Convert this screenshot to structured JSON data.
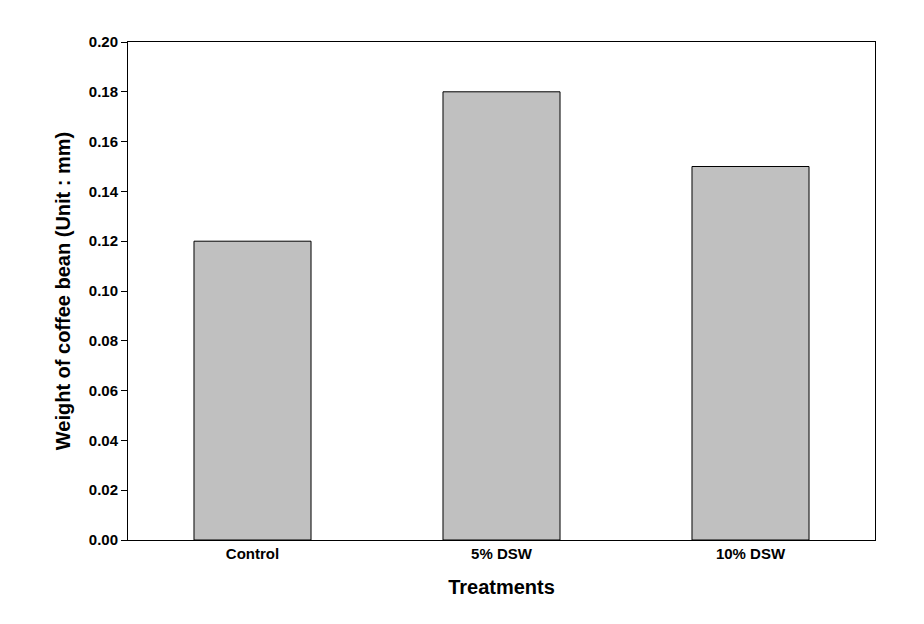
{
  "chart_data": {
    "type": "bar",
    "x_label": "Treatments",
    "y_label": "Weight of coffee bean (Unit : mm)",
    "categories": [
      "Control",
      "5% DSW",
      "10% DSW"
    ],
    "values": [
      0.12,
      0.18,
      0.15
    ],
    "color": "#c0c0c0",
    "ylim": [
      0,
      0.2
    ],
    "yticks": [
      {
        "value": 0,
        "label": "0.00"
      },
      {
        "value": 0.02,
        "label": "0.02"
      },
      {
        "value": 0.04,
        "label": "0.04"
      },
      {
        "value": 0.06,
        "label": "0.06"
      },
      {
        "value": 0.08,
        "label": "0.08"
      },
      {
        "value": 0.1,
        "label": "0.10"
      },
      {
        "value": 0.12,
        "label": "0.12"
      },
      {
        "value": 0.14,
        "label": "0.14"
      },
      {
        "value": 0.16,
        "label": "0.16"
      },
      {
        "value": 0.18,
        "label": "0.18"
      },
      {
        "value": 0.2,
        "label": "0.20"
      }
    ],
    "grid": false
  }
}
